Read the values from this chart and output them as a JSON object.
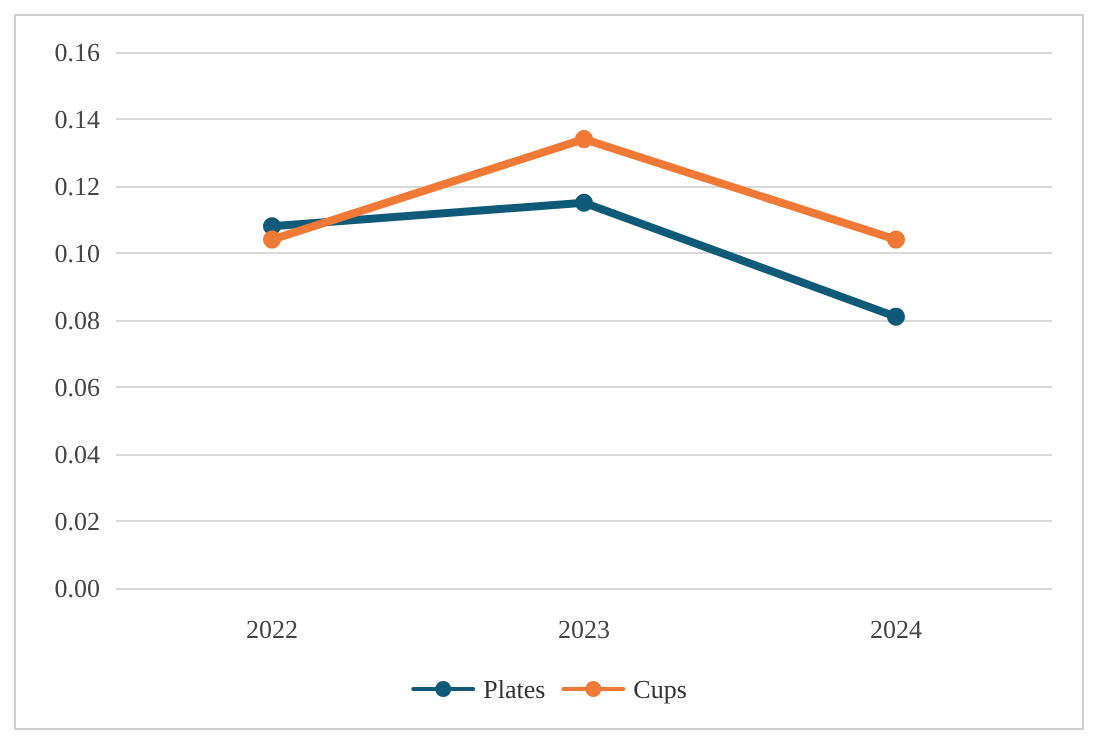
{
  "chart_data": {
    "type": "line",
    "categories": [
      "2022",
      "2023",
      "2024"
    ],
    "series": [
      {
        "name": "Plates",
        "color": "#0e5a78",
        "values": [
          0.108,
          0.115,
          0.081
        ]
      },
      {
        "name": "Cups",
        "color": "#f07a35",
        "values": [
          0.104,
          0.134,
          0.104
        ]
      }
    ],
    "ylim": [
      0,
      0.16
    ],
    "yticks": [
      {
        "value": 0,
        "label": "0.00"
      },
      {
        "value": 0.02,
        "label": "0.02"
      },
      {
        "value": 0.04,
        "label": "0.04"
      },
      {
        "value": 0.06,
        "label": "0.06"
      },
      {
        "value": 0.08,
        "label": "0.08"
      },
      {
        "value": 0.1,
        "label": "0.10"
      },
      {
        "value": 0.12,
        "label": "0.12"
      },
      {
        "value": 0.14,
        "label": "0.14"
      },
      {
        "value": 0.16,
        "label": "0.16"
      }
    ],
    "grid": "y",
    "legend": "bottom",
    "marker": "circle",
    "line_style": "solid"
  }
}
